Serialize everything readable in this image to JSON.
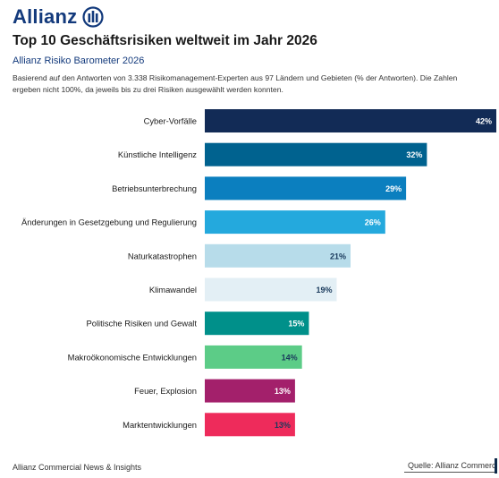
{
  "brand": {
    "name": "Allianz",
    "logo_icon": "allianz-eagle-icon",
    "color": "#133a7c"
  },
  "header": {
    "title": "Top 10 Geschäftsrisiken weltweit im Jahr 2026",
    "subtitle": "Allianz Risiko Barometer 2026",
    "description": "Basierend auf den Antworten von 3.338 Risikomanagement-Experten aus 97 Ländern und Gebieten (% der Antworten). Die Zahlen ergeben nicht 100%, da jeweils bis zu drei Risiken ausgewählt werden konnten."
  },
  "chart_data": {
    "type": "bar",
    "orientation": "horizontal",
    "categories": [
      "Cyber-Vorfälle",
      "Künstliche Intelligenz",
      "Betriebsunterbrechung",
      "Änderungen in Gesetzgebung und Regulierung",
      "Naturkatastrophen",
      "Klimawandel",
      "Politische Risiken und Gewalt",
      "Makroökonomische Entwicklungen",
      "Feuer, Explosion",
      "Marktentwicklungen"
    ],
    "values": [
      42,
      32,
      29,
      26,
      21,
      19,
      15,
      14,
      13,
      13
    ],
    "value_labels": [
      "42%",
      "32%",
      "29%",
      "26%",
      "21%",
      "19%",
      "15%",
      "14%",
      "13%",
      "13%"
    ],
    "colors": [
      "#122b56",
      "#00628f",
      "#0b7fbf",
      "#24a9dd",
      "#b7dcea",
      "#e3eff5",
      "#00908a",
      "#5ccc87",
      "#a3206b",
      "#ee2b5b"
    ],
    "label_colors": [
      "#ffffff",
      "#ffffff",
      "#ffffff",
      "#ffffff",
      "#1a3a5c",
      "#1a3a5c",
      "#ffffff",
      "#1a3a5c",
      "#ffffff",
      "#1a3a5c"
    ],
    "xlim": [
      0,
      42
    ],
    "grid": false,
    "legend": "none"
  },
  "footer": {
    "left": "Allianz Commercial News & Insights",
    "right": "Quelle: Allianz Commercial"
  }
}
